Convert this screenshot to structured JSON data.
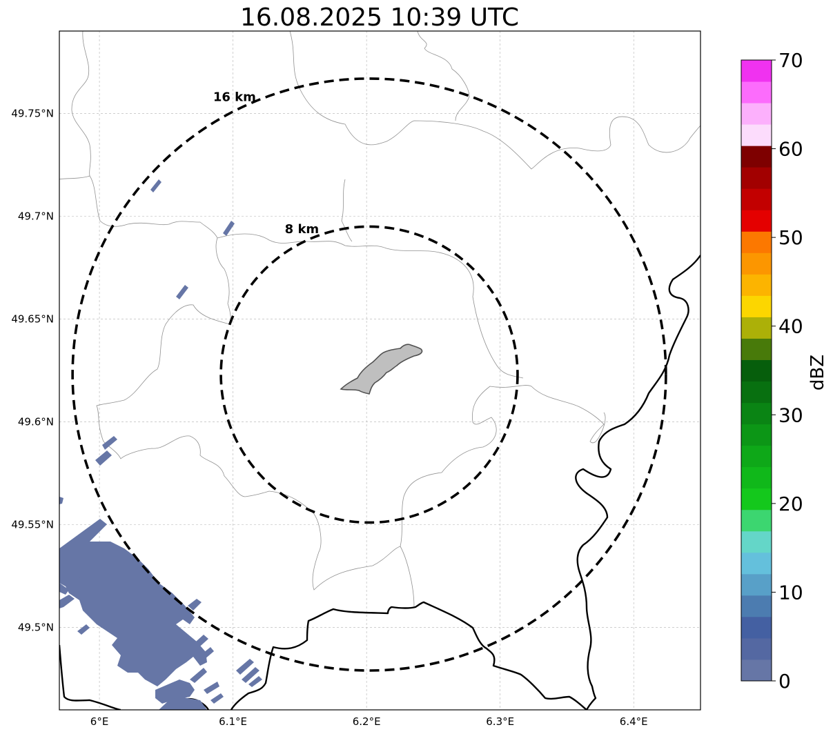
{
  "title": "16.08.2025 10:39 UTC",
  "map": {
    "lon_range": [
      5.97,
      6.45
    ],
    "lat_range": [
      49.46,
      49.79
    ],
    "x_ticks": [
      {
        "value": 6.0,
        "label": "6°E"
      },
      {
        "value": 6.1,
        "label": "6.1°E"
      },
      {
        "value": 6.2,
        "label": "6.2°E"
      },
      {
        "value": 6.3,
        "label": "6.3°E"
      },
      {
        "value": 6.4,
        "label": "6.4°E"
      }
    ],
    "y_ticks": [
      {
        "value": 49.75,
        "label": "49.75°N"
      },
      {
        "value": 49.7,
        "label": "49.7°N"
      },
      {
        "value": 49.65,
        "label": "49.65°N"
      },
      {
        "value": 49.6,
        "label": "49.6°N"
      },
      {
        "value": 49.55,
        "label": "49.55°N"
      },
      {
        "value": 49.5,
        "label": "49.5°N"
      }
    ],
    "gridlines": true,
    "range_rings": [
      {
        "label": "8 km",
        "radius_km": 8
      },
      {
        "label": "16 km",
        "radius_km": 16
      }
    ],
    "center": {
      "lon": 6.202,
      "lat": 49.623
    }
  },
  "colorbar": {
    "label": "dBZ",
    "min": 0,
    "max": 70,
    "tick_values": [
      0,
      10,
      20,
      30,
      40,
      50,
      60,
      70
    ],
    "tick_labels": [
      "0",
      "10",
      "20",
      "30",
      "40",
      "50",
      "60",
      "70"
    ],
    "colors": [
      "#6676a6",
      "#5468a2",
      "#4460a2",
      "#4c7cb0",
      "#58a0c8",
      "#64c0dc",
      "#64d6c8",
      "#3cd670",
      "#14c81c",
      "#10b81a",
      "#0ea818",
      "#0c9616",
      "#0a8414",
      "#087010",
      "#065e0c",
      "#487a0a",
      "#acb008",
      "#fcd600",
      "#fcb400",
      "#fc9600",
      "#fc7800",
      "#e40000",
      "#c20000",
      "#a20000",
      "#7e0000",
      "#fcdcfc",
      "#fcb0fc",
      "#fc6cfc",
      "#f032f0"
    ]
  }
}
